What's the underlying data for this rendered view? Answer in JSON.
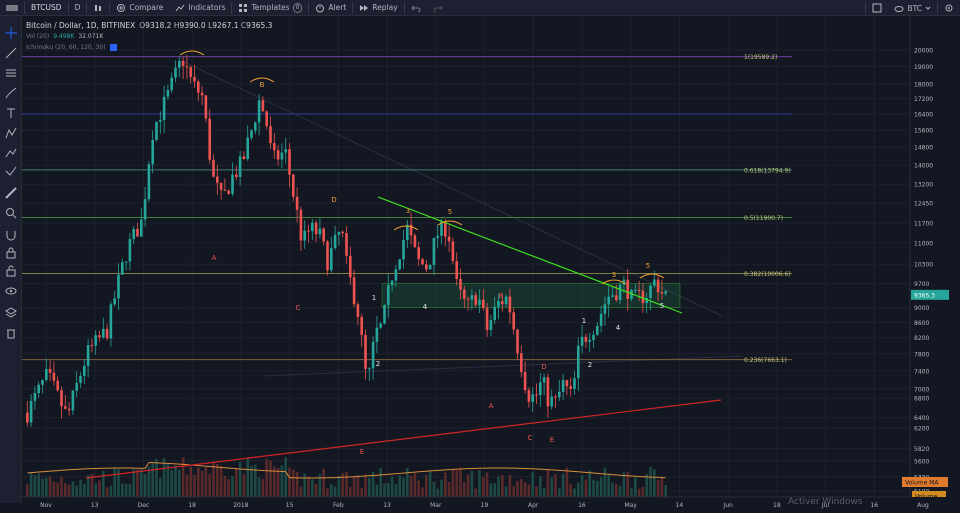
{
  "toolbar": {
    "symbol": "BTCUSD",
    "interval": "D",
    "compare_label": "Compare",
    "indicators_label": "Indicators",
    "templates_label": "Templates",
    "templates_count": "0",
    "alert_label": "Alert",
    "replay_label": "Replay",
    "currency": "BTC"
  },
  "legend": {
    "title": "Bitcoin / Dollar, 1D, BITFINEX",
    "open_label": "O",
    "open": "9318.2",
    "high_label": "H",
    "high": "9390.0",
    "low_label": "L",
    "low": "9267.1",
    "close_label": "C",
    "close": "9365.3",
    "volume_label": "Vol (20)",
    "volume_ma": "9.498K",
    "volume_value": "32.071K",
    "ichimoku_label": "Ichimoku (20, 60, 120, 30)"
  },
  "watermark": "Activer Windows",
  "colors": {
    "up": "#26a69a",
    "down": "#ef5350",
    "background": "#131722",
    "trendline_green": "#3ce020",
    "trendline_red": "#d02626",
    "fib_line": "#3f7f5f",
    "arc": "#f0a030"
  },
  "chart_data": {
    "type": "candlestick",
    "symbol": "Bitcoin / Dollar",
    "exchange": "BITFINEX",
    "interval": "1D",
    "ylim": [
      5100,
      20500
    ],
    "y_scale": "log",
    "y_ticks": [
      20000,
      19000,
      18000,
      17200,
      16400,
      15600,
      14800,
      14000,
      13200,
      12450,
      11700,
      11000,
      10300,
      9700,
      9000,
      8600,
      8200,
      7800,
      7400,
      7000,
      6800,
      6400,
      6200,
      5820,
      5600,
      5330,
      5100
    ],
    "x_ticks": [
      "Nov",
      "13",
      "Dec",
      "18",
      "2018",
      "15",
      "Feb",
      "13",
      "Mar",
      "19",
      "Apr",
      "16",
      "May",
      "14",
      "Jun",
      "18",
      "Jul",
      "16",
      "Aug"
    ],
    "price_label": "9365.3",
    "fib_levels": [
      {
        "label": "1(19589.2)",
        "value": 19589.2,
        "color": "#6a3fa0"
      },
      {
        "label": "",
        "value": 16400,
        "color": "#3a3aa0"
      },
      {
        "label": "0.618(13794.9)",
        "value": 13794.9,
        "color": "#3f7f6f"
      },
      {
        "label": "0.5(11900.7)",
        "value": 11900.7,
        "color": "#3f7f3f"
      },
      {
        "label": "0.382(10006.6)",
        "value": 10006.6,
        "color": "#7f7f3f"
      },
      {
        "label": "0.236(7663.1)",
        "value": 7663.1,
        "color": "#7f5f3f"
      }
    ],
    "wave_labels_orange": [
      "B",
      "D",
      "3",
      "5",
      "3",
      "5"
    ],
    "wave_labels_white": [
      "1",
      "2",
      "4",
      "1",
      "2",
      "4",
      "5"
    ],
    "wave_labels_red": [
      "A",
      "C",
      "A",
      "C",
      "E",
      "D"
    ],
    "indicator_labels": [
      "Volume MA",
      "Volume"
    ]
  }
}
